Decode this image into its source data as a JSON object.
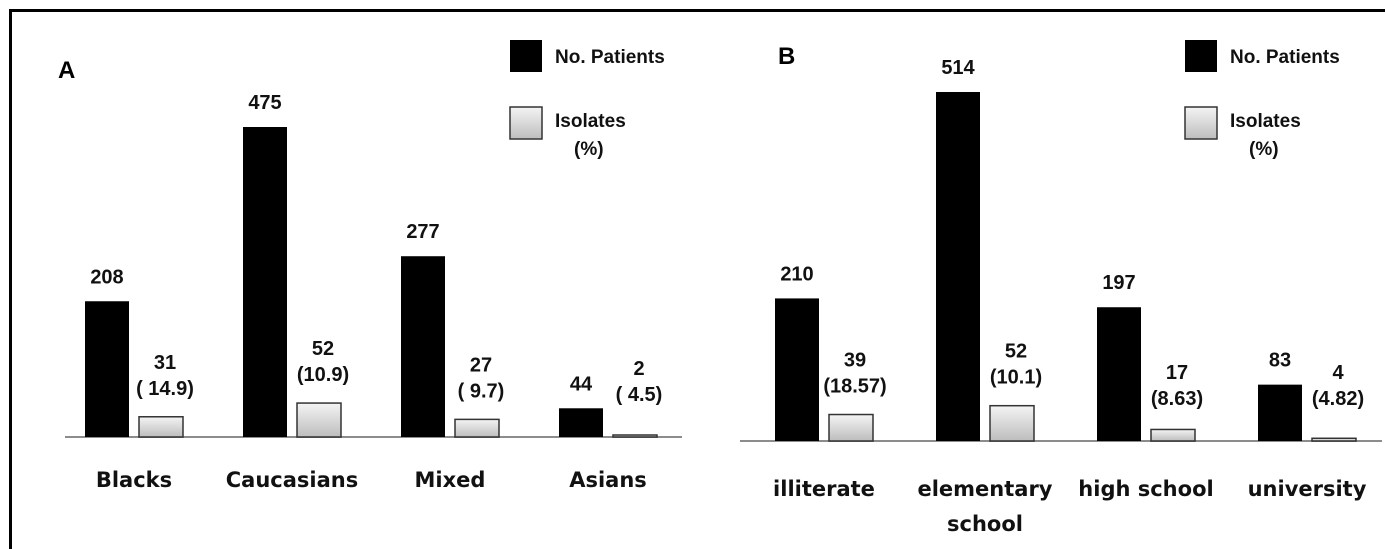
{
  "colors": {
    "patients_fill": "#000000",
    "isolates_fill_top": "#f4f4f4",
    "isolates_fill_bottom": "#bdbdbd",
    "axis": "#8c8c8c"
  },
  "chart_data": [
    {
      "type": "bar",
      "panel": "A",
      "categories": [
        "Blacks",
        "Caucasians",
        "Mixed",
        "Asians"
      ],
      "series": [
        {
          "name": "No. Patients",
          "values": [
            208,
            475,
            277,
            44
          ],
          "labels": [
            "208",
            "475",
            "277",
            "44"
          ]
        },
        {
          "name": "Isolates (%)",
          "values": [
            31,
            52,
            27,
            2
          ],
          "labels": [
            "31",
            "52",
            "27",
            "2"
          ],
          "percent_labels": [
            "( 14.9)",
            "(10.9)",
            "( 9.7)",
            "( 4.5)"
          ]
        }
      ],
      "legend": {
        "patients": "No. Patients",
        "isolates_line1": "Isolates",
        "isolates_line2": "(%)",
        "position": "top-right"
      },
      "ylim": [
        0,
        520
      ],
      "grid": false
    },
    {
      "type": "bar",
      "panel": "B",
      "categories": [
        [
          "illiterate"
        ],
        [
          "elementary",
          "school"
        ],
        [
          "high school"
        ],
        [
          "university"
        ]
      ],
      "series": [
        {
          "name": "No. Patients",
          "values": [
            210,
            514,
            197,
            83
          ],
          "labels": [
            "210",
            "514",
            "197",
            "83"
          ]
        },
        {
          "name": "Isolates (%)",
          "values": [
            39,
            52,
            17,
            4
          ],
          "labels": [
            "39",
            "52",
            "17",
            "4"
          ],
          "percent_labels": [
            "(18.57)",
            "(10.1)",
            "(8.63)",
            "(4.82)"
          ]
        }
      ],
      "legend": {
        "patients": "No. Patients",
        "isolates_line1": "Isolates",
        "isolates_line2": "(%)",
        "position": "top-right"
      },
      "ylim": [
        0,
        520
      ],
      "grid": false
    }
  ]
}
